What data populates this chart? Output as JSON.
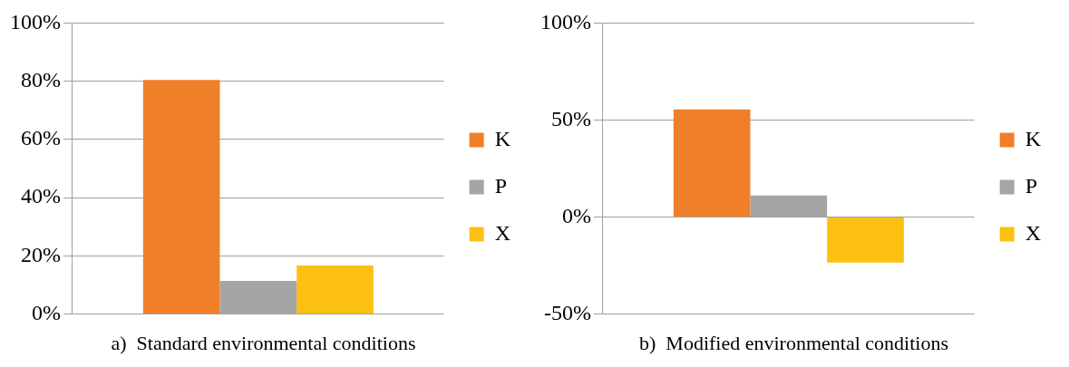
{
  "chart_data": [
    {
      "type": "bar",
      "title": "a)  Standard environmental conditions",
      "categories": [
        null
      ],
      "series": [
        {
          "name": "K",
          "color": "#f07f2a",
          "values": [
            80.4
          ]
        },
        {
          "name": "P",
          "color": "#a5a5a5",
          "values": [
            11.4
          ]
        },
        {
          "name": "X",
          "color": "#fcc012",
          "values": [
            16.7
          ]
        }
      ],
      "ylim": [
        0,
        100
      ],
      "yticks": [
        {
          "value": 0,
          "label": "0%"
        },
        {
          "value": 20,
          "label": "20%"
        },
        {
          "value": 40,
          "label": "40%"
        },
        {
          "value": 60,
          "label": "60%"
        },
        {
          "value": 80,
          "label": "80%"
        },
        {
          "value": 100,
          "label": "100%"
        }
      ],
      "grid": "y",
      "legend": "right",
      "tick_labels": "y"
    },
    {
      "type": "bar",
      "title": "b)  Modified environmental conditions",
      "categories": [
        null
      ],
      "series": [
        {
          "name": "K",
          "color": "#f07f2a",
          "values": [
            55.5
          ]
        },
        {
          "name": "P",
          "color": "#a5a5a5",
          "values": [
            11.1
          ]
        },
        {
          "name": "X",
          "color": "#fcc012",
          "values": [
            -23.5
          ]
        }
      ],
      "ylim": [
        -50,
        100
      ],
      "yticks": [
        {
          "value": -50,
          "label": "-50%"
        },
        {
          "value": 0,
          "label": "0%"
        },
        {
          "value": 50,
          "label": "50%"
        },
        {
          "value": 100,
          "label": "100%"
        }
      ],
      "grid": "y",
      "legend": "right",
      "tick_labels": "y"
    }
  ]
}
